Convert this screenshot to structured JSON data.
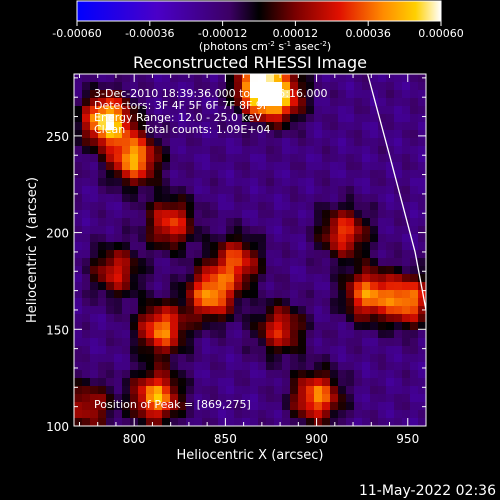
{
  "chart_data": {
    "type": "heatmap",
    "title": "Reconstructed RHESSI Image",
    "xlabel": "Heliocentric X (arcsec)",
    "ylabel": "Heliocentric Y (arcsec)",
    "xlim": [
      767,
      960
    ],
    "ylim": [
      100,
      282
    ],
    "xticks": [
      800,
      850,
      900,
      950
    ],
    "yticks": [
      100,
      150,
      200,
      250
    ],
    "colorbar": {
      "range": [
        -0.0006,
        0.0006
      ],
      "ticks": [
        "-0.00060",
        "-0.00036",
        "-0.00012",
        "0.00012",
        "0.00036",
        "0.00060"
      ],
      "unit_label": [
        "(photons cm",
        "-2",
        " s",
        "-1",
        " asec",
        "-2",
        ")"
      ]
    },
    "annotations": {
      "time": "3-Dec-2010 18:39:36.000 to 18:45:16.000",
      "detectors": "Detectors: 3F 4F 5F 6F 7F 8F 9F",
      "energy": "Energy Range: 12.0 - 25.0 keV",
      "clean": "Clean     Total counts: 1.09E+04",
      "peak": "Position of Peak = [869,275]"
    },
    "bright_regions": [
      {
        "x": 785,
        "y": 258,
        "value": 0.00058
      },
      {
        "x": 800,
        "y": 238,
        "value": 0.00045
      },
      {
        "x": 820,
        "y": 205,
        "value": 0.0003
      },
      {
        "x": 815,
        "y": 150,
        "value": 0.0004
      },
      {
        "x": 842,
        "y": 168,
        "value": 0.00042
      },
      {
        "x": 856,
        "y": 185,
        "value": 0.0003
      },
      {
        "x": 880,
        "y": 270,
        "value": 0.00035
      },
      {
        "x": 869,
        "y": 275,
        "value": 0.0006
      },
      {
        "x": 812,
        "y": 115,
        "value": 0.00045
      },
      {
        "x": 900,
        "y": 115,
        "value": 0.0004
      },
      {
        "x": 928,
        "y": 168,
        "value": 0.00038
      },
      {
        "x": 950,
        "y": 165,
        "value": 0.0004
      },
      {
        "x": 915,
        "y": 200,
        "value": 0.0003
      },
      {
        "x": 880,
        "y": 150,
        "value": 0.00026
      },
      {
        "x": 790,
        "y": 180,
        "value": 0.00024
      },
      {
        "x": 775,
        "y": 110,
        "value": 0.0002
      }
    ],
    "limb_line": [
      [
        928,
        282
      ],
      [
        940,
        240
      ],
      [
        954,
        190
      ],
      [
        960,
        160
      ]
    ]
  },
  "footer": {
    "timestamp": "11-May-2022 02:36"
  }
}
